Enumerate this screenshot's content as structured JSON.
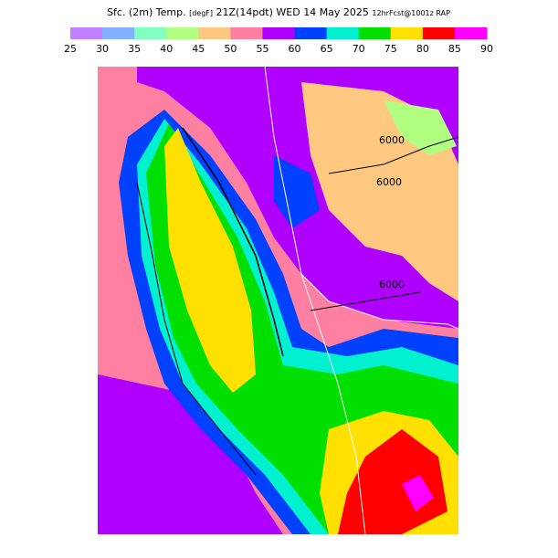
{
  "header": {
    "title": "Sfc. (2m) Temp.",
    "units": "[degF]",
    "valid": "21Z(14pdt) WED 14 May 2025",
    "forecast": "12hrFcst@1001z RAP"
  },
  "legend": {
    "ticks": [
      25,
      30,
      35,
      40,
      45,
      50,
      55,
      60,
      65,
      70,
      75,
      80,
      85,
      90
    ],
    "colors": [
      "#c080ff",
      "#80b0ff",
      "#80ffc0",
      "#b0ff80",
      "#ffc880",
      "#ff80a0",
      "#b000ff",
      "#0040ff",
      "#00f0d0",
      "#00e000",
      "#ffe000",
      "#ff0000",
      "#ff00ff"
    ]
  },
  "map": {
    "contour_labels": [
      "6000",
      "6000",
      "6000"
    ]
  }
}
